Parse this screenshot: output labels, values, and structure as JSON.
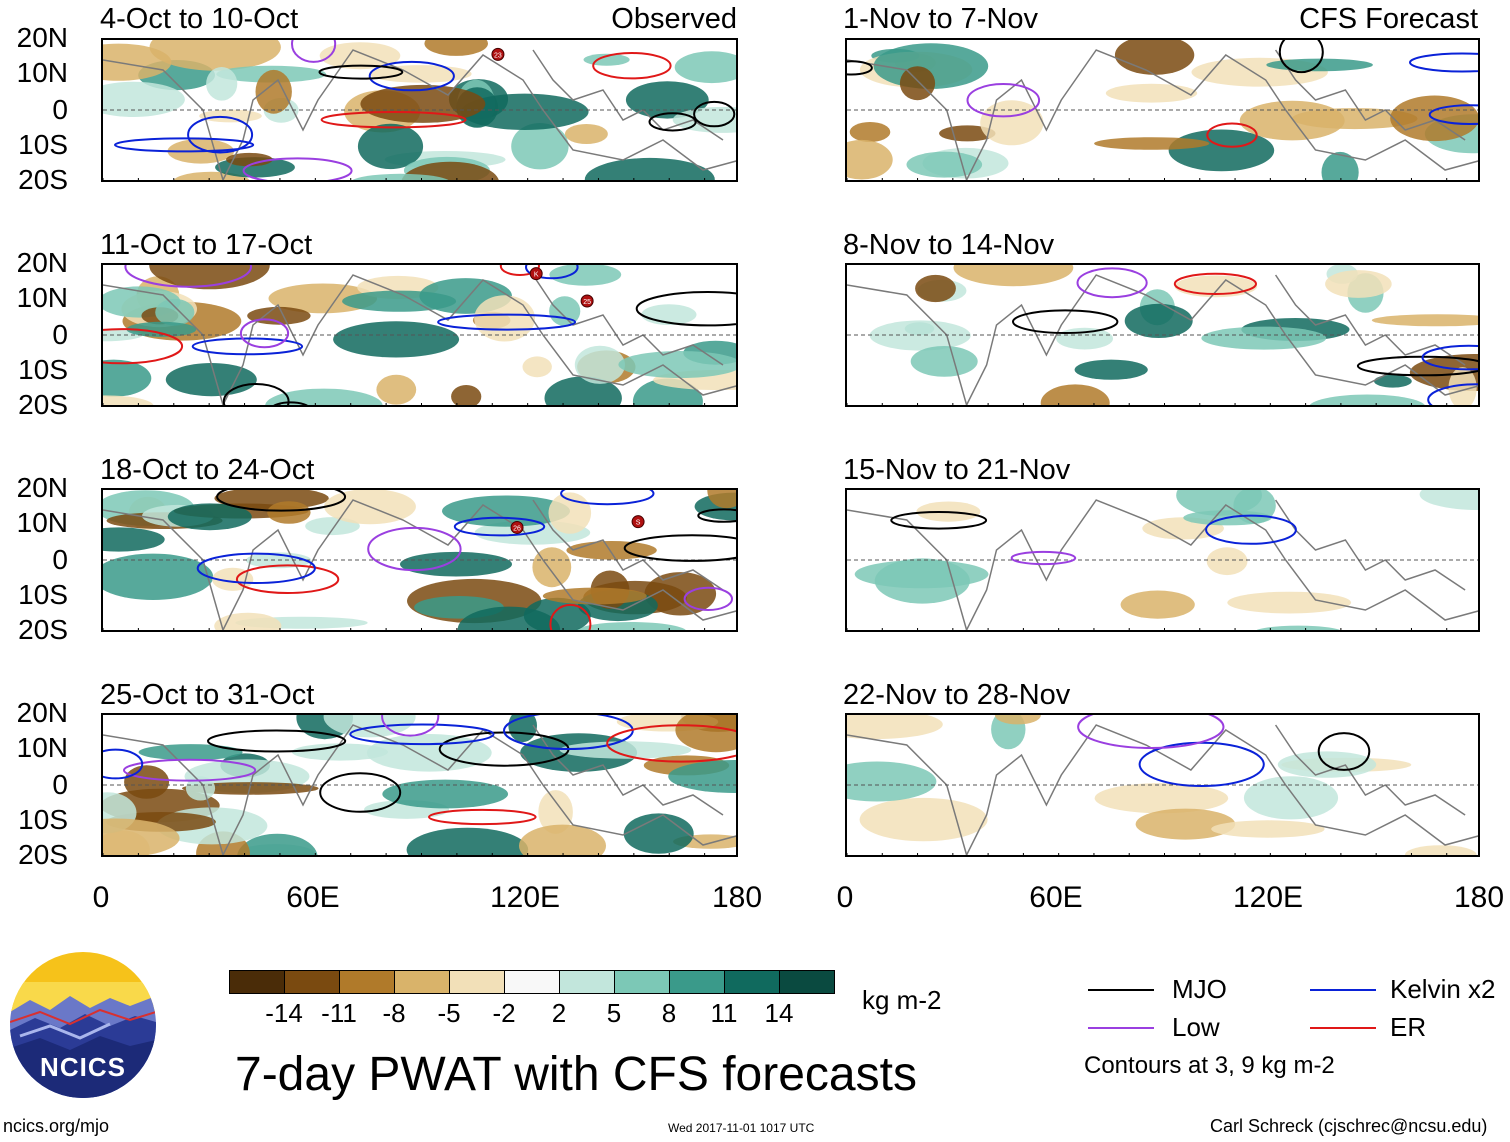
{
  "titles": {
    "observed": "Observed",
    "forecast": "CFS Forecast",
    "main": "7-day PWAT with CFS forecasts"
  },
  "left_panels": [
    {
      "title": "4-Oct to 10-Oct"
    },
    {
      "title": "11-Oct to 17-Oct"
    },
    {
      "title": "18-Oct to 24-Oct"
    },
    {
      "title": "25-Oct to 31-Oct"
    }
  ],
  "right_panels": [
    {
      "title": "1-Nov to 7-Nov"
    },
    {
      "title": "8-Nov to 14-Nov"
    },
    {
      "title": "15-Nov to 21-Nov"
    },
    {
      "title": "22-Nov to 28-Nov"
    }
  ],
  "y_axis_labels": [
    "20N",
    "10N",
    "0",
    "10S",
    "20S"
  ],
  "x_axis_labels": [
    "0",
    "60E",
    "120E",
    "180"
  ],
  "colorbar": {
    "units": "kg m-2",
    "ticks": [
      "-14",
      "-11",
      "-8",
      "-5",
      "-2",
      "2",
      "5",
      "8",
      "11",
      "14"
    ],
    "colors": [
      "#4a2c08",
      "#7a4a10",
      "#b07a2a",
      "#d9b36a",
      "#f2e0b8",
      "#f8f8f8",
      "#c2e6dc",
      "#7cc8b6",
      "#3a9a8a",
      "#106a5e",
      "#0a4a40"
    ]
  },
  "legend": {
    "items": [
      {
        "label": "MJO",
        "color": "#000000"
      },
      {
        "label": "Kelvin x2",
        "color": "#0a22d8"
      },
      {
        "label": "Low",
        "color": "#9a3fe0"
      },
      {
        "label": "ER",
        "color": "#e01818"
      }
    ],
    "contours_note": "Contours at 3, 9 kg m-2"
  },
  "logo_text": "NCICS",
  "footer": {
    "url": "ncics.org/mjo",
    "timestamp": "Wed 2017-11-01 1017 UTC",
    "author": "Carl Schreck (cjschrec@ncsu.edu)"
  },
  "storm_markers": [
    {
      "label": "23"
    },
    {
      "label": "K"
    },
    {
      "label": "25"
    },
    {
      "label": "26"
    },
    {
      "label": "S"
    }
  ]
}
